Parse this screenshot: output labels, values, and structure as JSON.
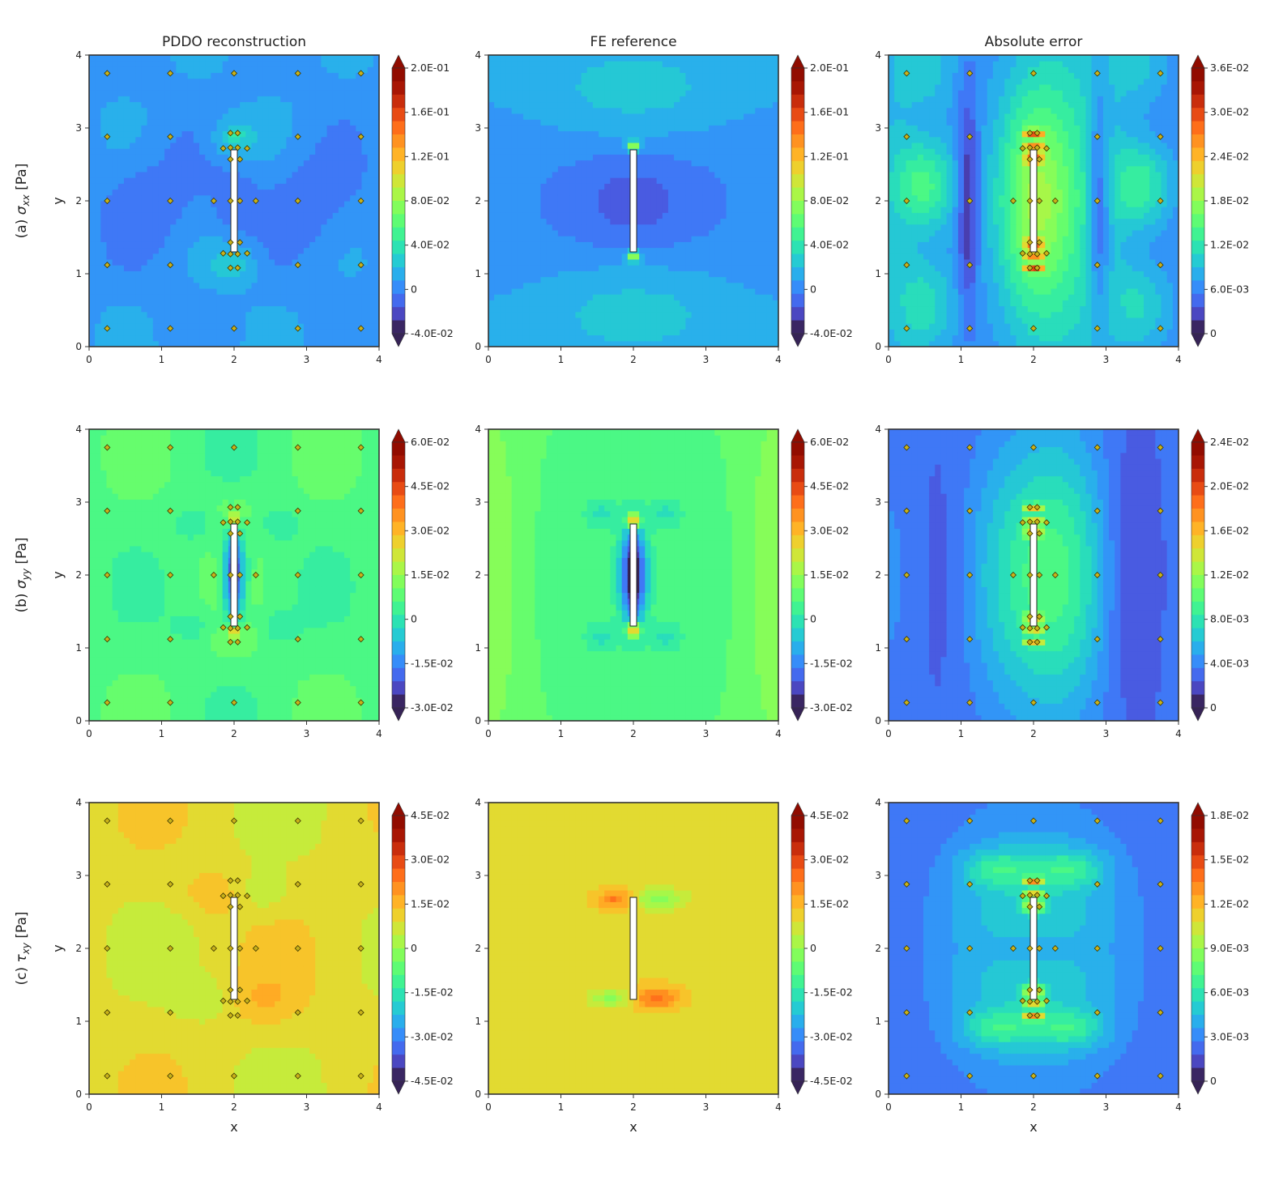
{
  "chart_data": {
    "type": "heatmap",
    "column_titles": [
      "PDDO reconstruction",
      "FE reference",
      "Absolute error"
    ],
    "rows": [
      {
        "row_label": {
          "prefix": "(a)",
          "symbol": "σ",
          "subscript": "xx",
          "unit": "[Pa]"
        },
        "fields": [
          {
            "colorbar_ticks": [
              "2.0E-01",
              "1.6E-01",
              "1.2E-01",
              "8.0E-02",
              "4.0E-02",
              "0",
              "-4.0E-02"
            ],
            "vmin": -0.04,
            "vmax": 0.2
          },
          {
            "colorbar_ticks": [
              "2.0E-01",
              "1.6E-01",
              "1.2E-01",
              "8.0E-02",
              "4.0E-02",
              "0",
              "-4.0E-02"
            ],
            "vmin": -0.04,
            "vmax": 0.2
          },
          {
            "colorbar_ticks": [
              "3.6E-02",
              "3.0E-02",
              "2.4E-02",
              "1.8E-02",
              "1.2E-02",
              "6.0E-03",
              "0"
            ],
            "vmin": 0,
            "vmax": 0.036
          }
        ]
      },
      {
        "row_label": {
          "prefix": "(b)",
          "symbol": "σ",
          "subscript": "yy",
          "unit": "[Pa]"
        },
        "fields": [
          {
            "colorbar_ticks": [
              "6.0E-02",
              "4.5E-02",
              "3.0E-02",
              "1.5E-02",
              "0",
              "-1.5E-02",
              "-3.0E-02"
            ],
            "vmin": -0.03,
            "vmax": 0.06
          },
          {
            "colorbar_ticks": [
              "6.0E-02",
              "4.5E-02",
              "3.0E-02",
              "1.5E-02",
              "0",
              "-1.5E-02",
              "-3.0E-02"
            ],
            "vmin": -0.03,
            "vmax": 0.06
          },
          {
            "colorbar_ticks": [
              "2.4E-02",
              "2.0E-02",
              "1.6E-02",
              "1.2E-02",
              "8.0E-03",
              "4.0E-03",
              "0"
            ],
            "vmin": 0,
            "vmax": 0.024
          }
        ]
      },
      {
        "row_label": {
          "prefix": "(c)",
          "symbol": "τ",
          "subscript": "xy",
          "unit": "[Pa]"
        },
        "fields": [
          {
            "colorbar_ticks": [
              "4.5E-02",
              "3.0E-02",
              "1.5E-02",
              "0",
              "-1.5E-02",
              "-3.0E-02",
              "-4.5E-02"
            ],
            "vmin": -0.045,
            "vmax": 0.045
          },
          {
            "colorbar_ticks": [
              "4.5E-02",
              "3.0E-02",
              "1.5E-02",
              "0",
              "-1.5E-02",
              "-3.0E-02",
              "-4.5E-02"
            ],
            "vmin": -0.045,
            "vmax": 0.045
          },
          {
            "colorbar_ticks": [
              "1.8E-02",
              "1.5E-02",
              "1.2E-02",
              "9.0E-03",
              "6.0E-03",
              "3.0E-03",
              "0"
            ],
            "vmin": 0,
            "vmax": 0.018
          }
        ]
      }
    ],
    "xlabel": "x",
    "ylabel": "y",
    "xlim": [
      0,
      4
    ],
    "ylim": [
      0,
      4
    ],
    "xticks": [
      "0",
      "1",
      "2",
      "3",
      "4"
    ],
    "yticks": [
      "0",
      "1",
      "2",
      "3",
      "4"
    ],
    "crack": {
      "x": 2.0,
      "y_start": 1.3,
      "y_end": 2.7
    },
    "sensor_points": [
      [
        0.25,
        3.75
      ],
      [
        1.12,
        3.75
      ],
      [
        2.0,
        3.75
      ],
      [
        2.88,
        3.75
      ],
      [
        3.75,
        3.75
      ],
      [
        0.25,
        2.88
      ],
      [
        1.12,
        2.88
      ],
      [
        2.88,
        2.88
      ],
      [
        3.75,
        2.88
      ],
      [
        0.25,
        2.0
      ],
      [
        1.12,
        2.0
      ],
      [
        2.88,
        2.0
      ],
      [
        3.75,
        2.0
      ],
      [
        0.25,
        1.12
      ],
      [
        1.12,
        1.12
      ],
      [
        2.88,
        1.12
      ],
      [
        3.75,
        1.12
      ],
      [
        0.25,
        0.25
      ],
      [
        1.12,
        0.25
      ],
      [
        2.0,
        0.25
      ],
      [
        2.88,
        0.25
      ],
      [
        3.75,
        0.25
      ],
      [
        1.95,
        2.93
      ],
      [
        2.05,
        2.93
      ],
      [
        1.95,
        2.73
      ],
      [
        2.05,
        2.73
      ],
      [
        1.85,
        2.72
      ],
      [
        2.18,
        2.72
      ],
      [
        1.95,
        2.57
      ],
      [
        2.08,
        2.57
      ],
      [
        1.95,
        2.0
      ],
      [
        2.08,
        2.0
      ],
      [
        1.72,
        2.0
      ],
      [
        2.3,
        2.0
      ],
      [
        1.95,
        1.43
      ],
      [
        2.08,
        1.43
      ],
      [
        1.95,
        1.27
      ],
      [
        2.05,
        1.27
      ],
      [
        1.85,
        1.28
      ],
      [
        2.18,
        1.28
      ],
      [
        1.95,
        1.08
      ],
      [
        2.05,
        1.08
      ]
    ],
    "grid": false,
    "colormap": "turbo"
  }
}
